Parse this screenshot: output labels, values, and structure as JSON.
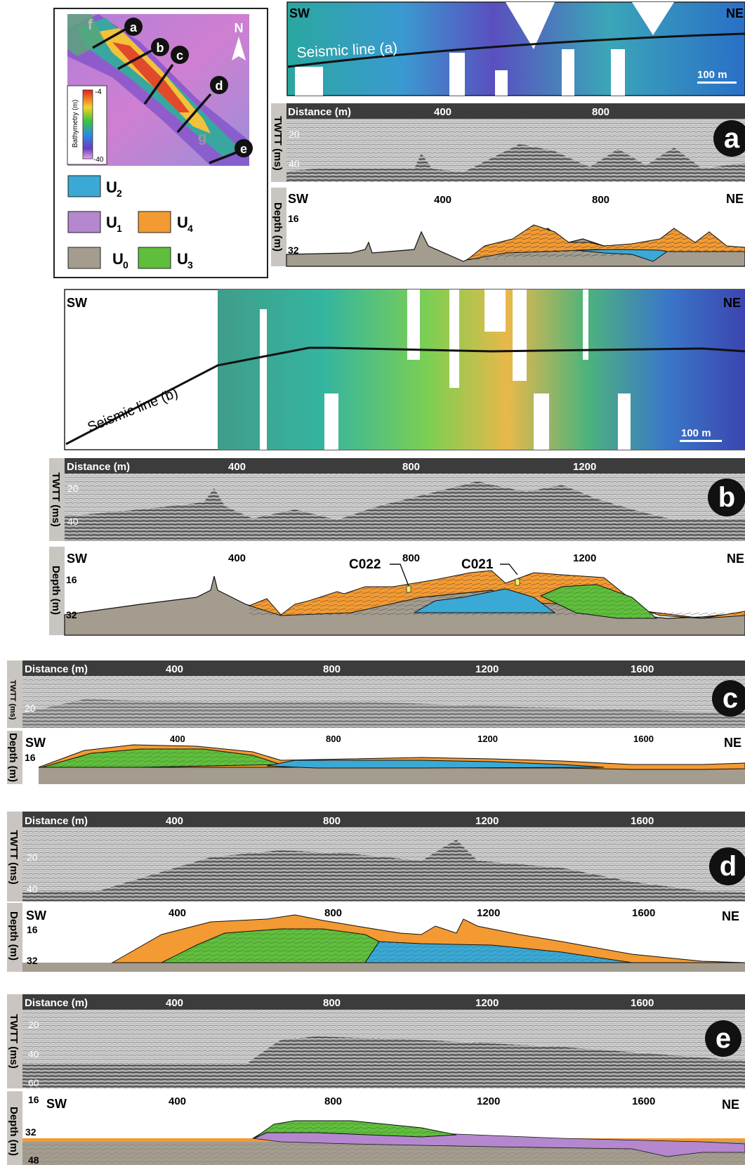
{
  "colors": {
    "U0": "#a39c8f",
    "U1": "#b487cf",
    "U2": "#3aa9d6",
    "U3": "#5fbf3c",
    "U4": "#f39a32",
    "seismic_bg": "#cfcfcf",
    "axis_bar": "#3c3c3c"
  },
  "icons": [
    "north-arrow-icon"
  ],
  "index_map": {
    "north_label": "N",
    "colorbar_title": "Bathymetry (m)",
    "colorbar_max": "-4",
    "colorbar_min": "-40",
    "line_labels": [
      "f",
      "a",
      "b",
      "c",
      "d",
      "g",
      "e"
    ]
  },
  "legend": {
    "items": [
      {
        "key": "U2",
        "label": "U",
        "sub": "2"
      },
      {
        "key": "U1",
        "label": "U",
        "sub": "1"
      },
      {
        "key": "U4",
        "label": "U",
        "sub": "4"
      },
      {
        "key": "U0",
        "label": "U",
        "sub": "0"
      },
      {
        "key": "U3",
        "label": "U",
        "sub": "3"
      }
    ]
  },
  "common": {
    "sw": "SW",
    "ne": "NE",
    "distance_label": "Distance (m)",
    "twtt_label": "TWTT (ms)",
    "depth_label": "Depth (m)",
    "scale_bar": "100 m"
  },
  "panels": {
    "a": {
      "letter": "a",
      "seismic_line": "Seismic line (a)",
      "dist_ticks": [
        "400",
        "800"
      ],
      "twtt_ticks": [
        "20",
        "40"
      ],
      "depth_ticks": [
        "16",
        "32"
      ]
    },
    "b": {
      "letter": "b",
      "seismic_line": "Seismic line (b)",
      "dist_ticks": [
        "400",
        "800",
        "1200"
      ],
      "twtt_ticks": [
        "20",
        "40"
      ],
      "depth_ticks": [
        "16",
        "32"
      ],
      "cores": [
        "C022",
        "C021"
      ]
    },
    "c": {
      "letter": "c",
      "dist_ticks": [
        "400",
        "800",
        "1200",
        "1600"
      ],
      "twtt_ticks": [
        "20"
      ],
      "depth_ticks": [
        "16"
      ]
    },
    "d": {
      "letter": "d",
      "dist_ticks": [
        "400",
        "800",
        "1200",
        "1600"
      ],
      "twtt_ticks": [
        "20",
        "40"
      ],
      "depth_ticks": [
        "16",
        "32"
      ]
    },
    "e": {
      "letter": "e",
      "dist_ticks": [
        "400",
        "800",
        "1200",
        "1600"
      ],
      "twtt_ticks": [
        "20",
        "40",
        "60"
      ],
      "depth_ticks": [
        "16",
        "32",
        "48"
      ]
    }
  }
}
